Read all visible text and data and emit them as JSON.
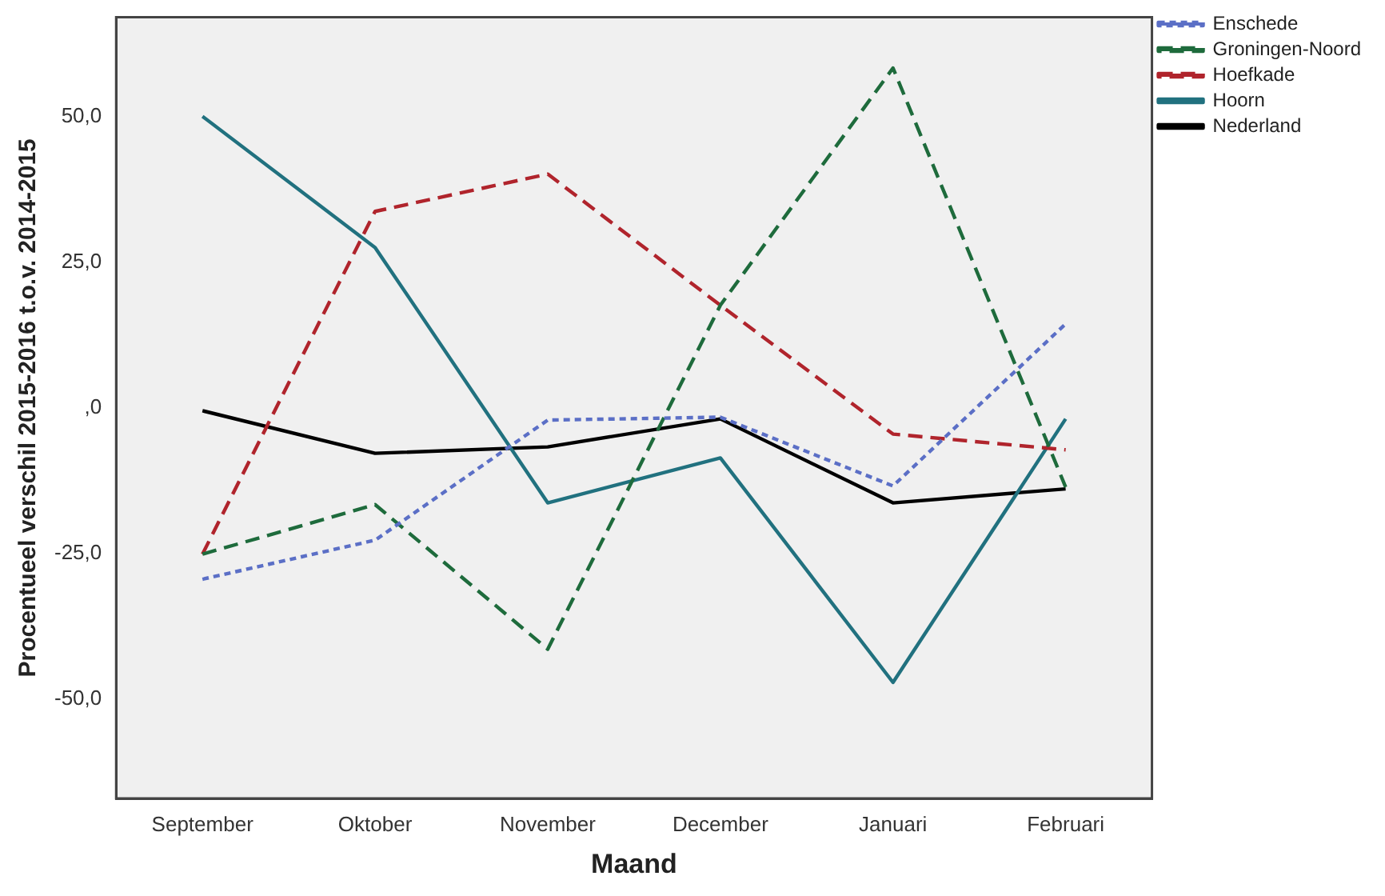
{
  "chart_data": {
    "type": "line",
    "xlabel": "Maand",
    "ylabel": "Procentueel verschil 2015-2016 t.o.v. 2014-2015",
    "categories": [
      "September",
      "Oktober",
      "November",
      "December",
      "Januari",
      "Februari"
    ],
    "series": [
      {
        "name": "Enschede",
        "color": "#5b6fc6",
        "line_style": "dotted",
        "values": [
          -29.4,
          -22.7,
          -2.1,
          -1.6,
          -13.4,
          14.4
        ]
      },
      {
        "name": "Groningen-Noord",
        "color": "#1e6b3c",
        "line_style": "dashed",
        "values": [
          -25.1,
          -16.6,
          -41.4,
          17.6,
          58.3,
          -13.6
        ]
      },
      {
        "name": "Hoefkade",
        "color": "#b0242c",
        "line_style": "dashed",
        "values": [
          -25.1,
          33.7,
          40.1,
          17.6,
          -4.5,
          -7.2
        ]
      },
      {
        "name": "Hoorn",
        "color": "#21717f",
        "line_style": "solid",
        "values": [
          50.0,
          27.5,
          -16.3,
          -8.6,
          -47.1,
          -1.9
        ]
      },
      {
        "name": "Nederland",
        "color": "#000000",
        "line_style": "solid",
        "values": [
          -0.5,
          -7.8,
          -6.7,
          -1.9,
          -16.3,
          -13.9
        ]
      }
    ],
    "ylim": [
      -67,
      67
    ],
    "yticks": [
      {
        "value": -50,
        "label": "-50,0"
      },
      {
        "value": -25,
        "label": "-25,0"
      },
      {
        "value": 0,
        "label": ",0"
      },
      {
        "value": 25,
        "label": "25,0"
      },
      {
        "value": 50,
        "label": "50,0"
      }
    ],
    "grid": false,
    "legend": "top right",
    "marker": "none"
  }
}
